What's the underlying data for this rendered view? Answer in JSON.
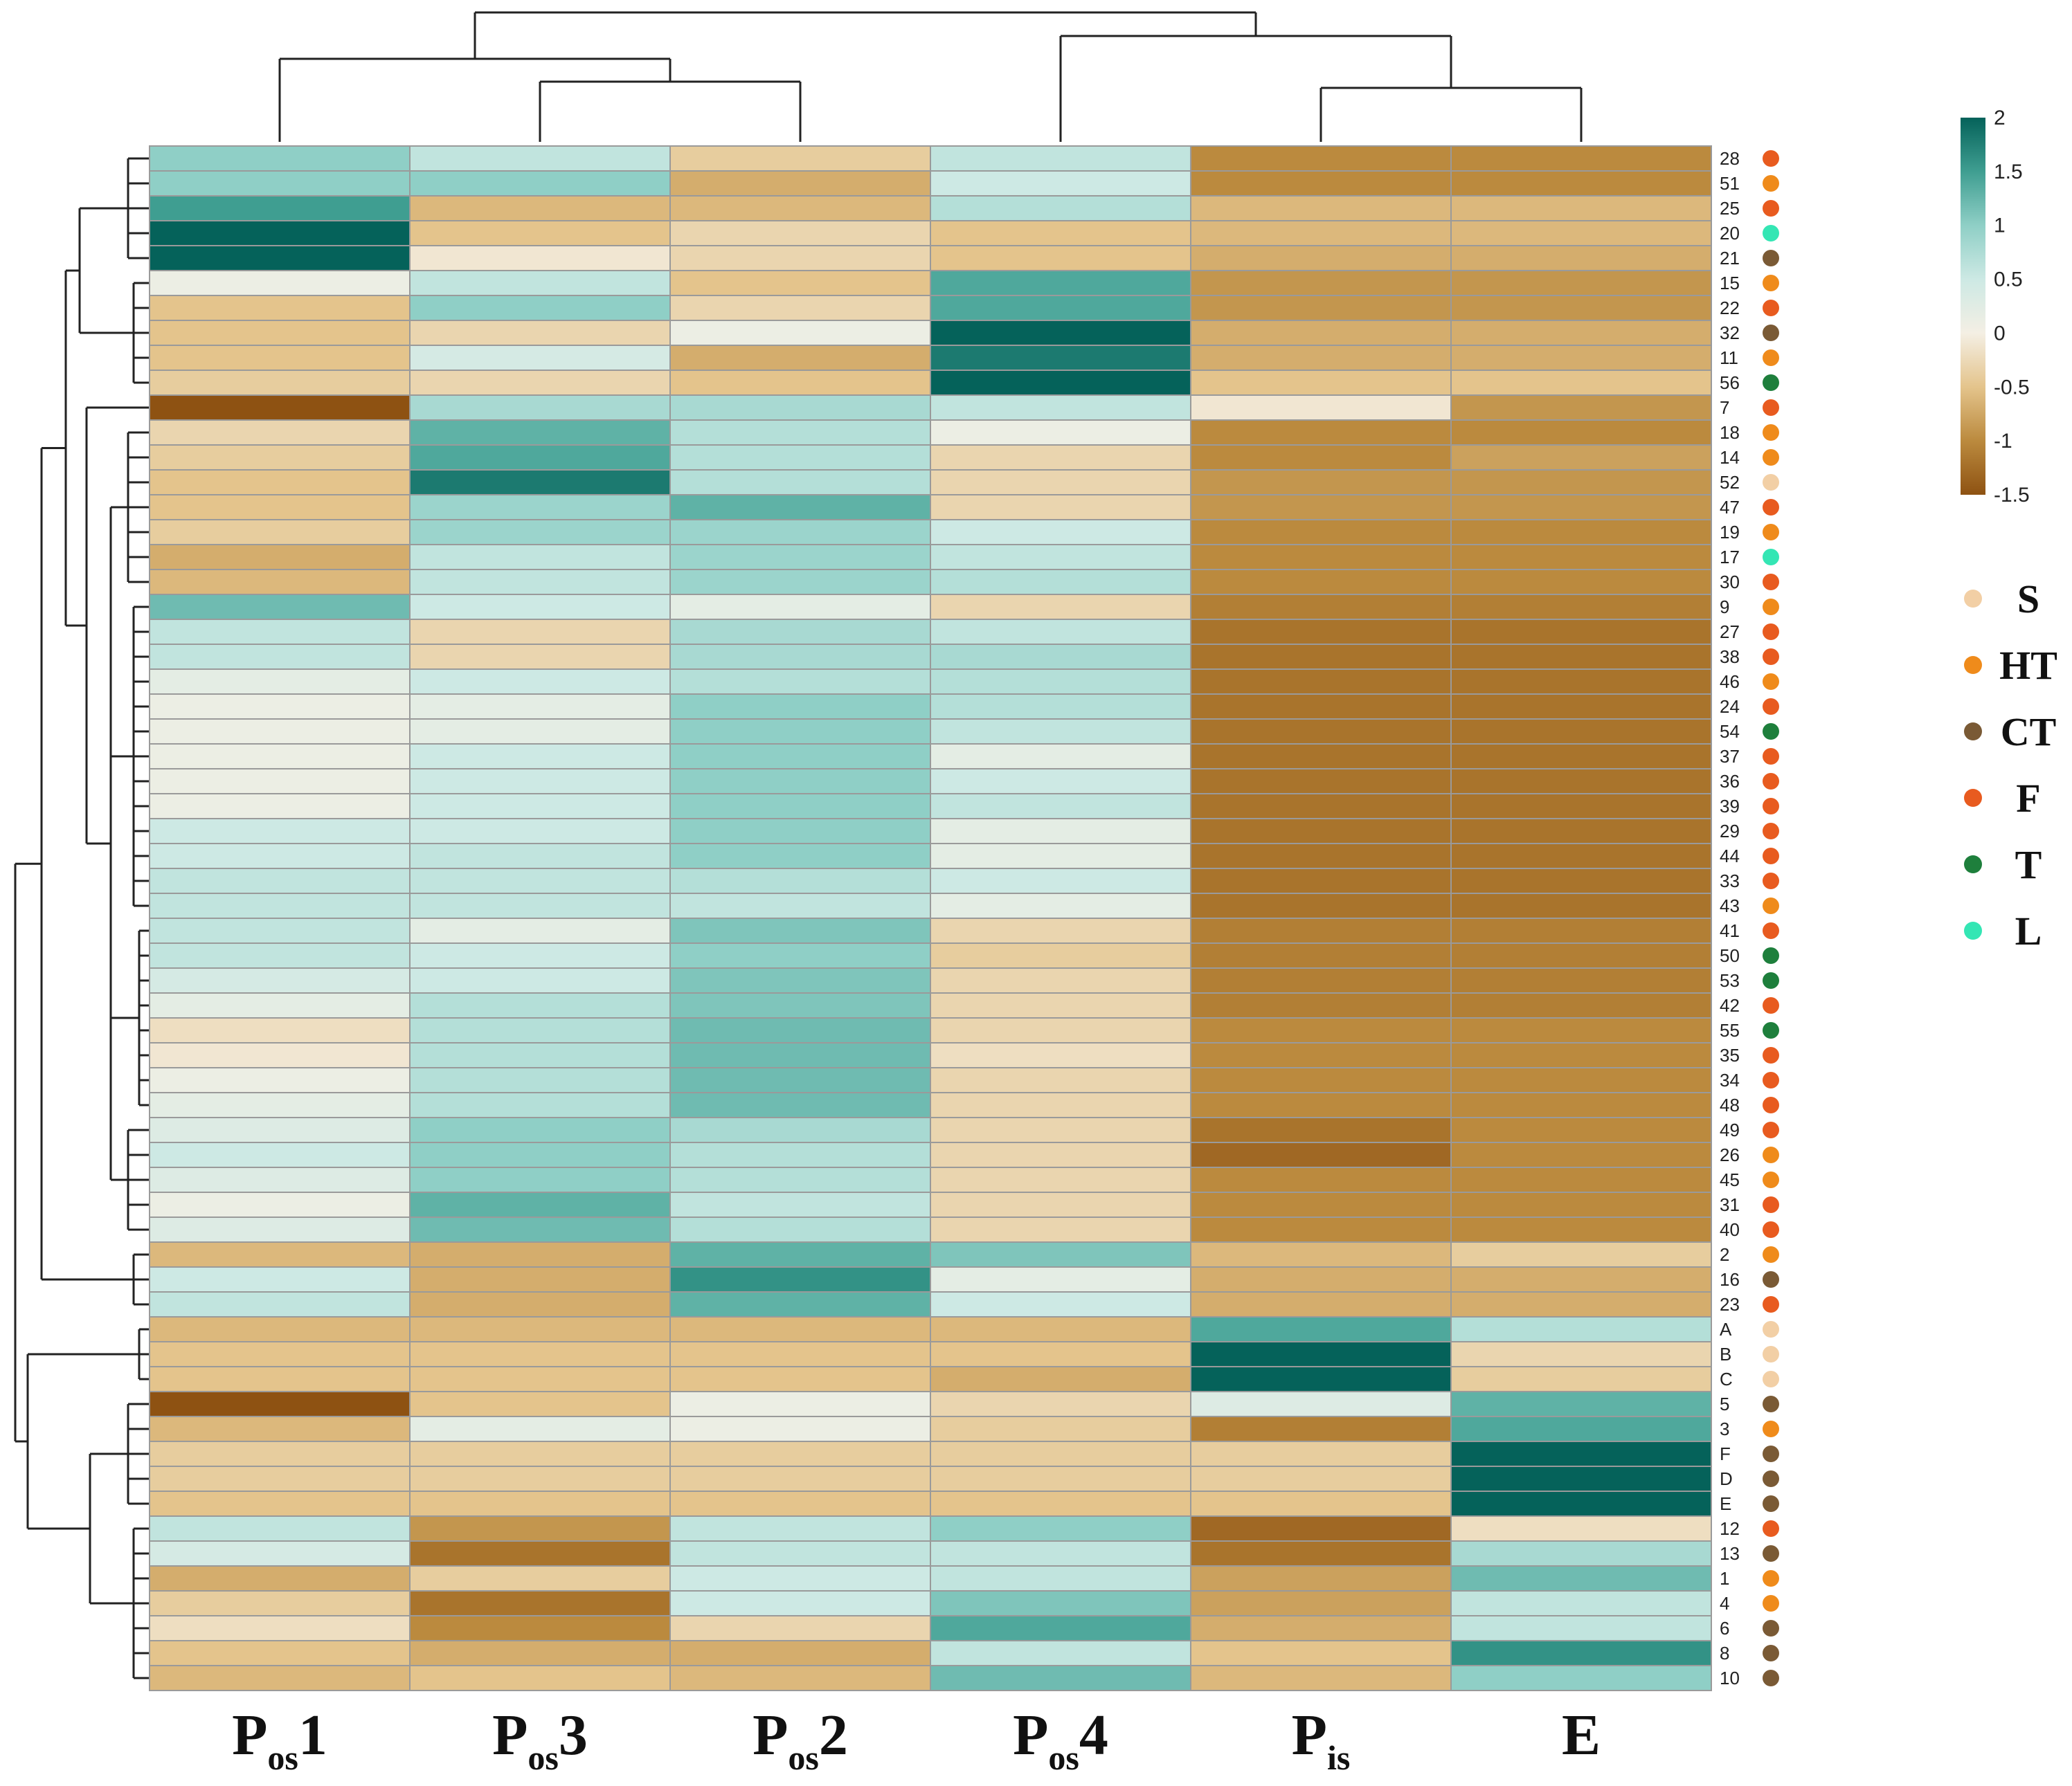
{
  "chart_data": {
    "type": "heatmap",
    "columns": [
      {
        "main": "P",
        "sub": "os",
        "suffix": "1"
      },
      {
        "main": "P",
        "sub": "os",
        "suffix": "3"
      },
      {
        "main": "P",
        "sub": "os",
        "suffix": "2"
      },
      {
        "main": "P",
        "sub": "os",
        "suffix": "4"
      },
      {
        "main": "P",
        "sub": "is",
        "suffix": ""
      },
      {
        "main": "E",
        "sub": "",
        "suffix": ""
      }
    ],
    "rows": [
      {
        "label": "28",
        "group": "F",
        "values": [
          1.0,
          0.6,
          -0.4,
          0.6,
          -1.0,
          -1.0
        ]
      },
      {
        "label": "51",
        "group": "HT",
        "values": [
          1.0,
          1.0,
          -0.7,
          0.5,
          -1.0,
          -1.0
        ]
      },
      {
        "label": "25",
        "group": "F",
        "values": [
          1.5,
          -0.6,
          -0.6,
          0.7,
          -0.6,
          -0.6
        ]
      },
      {
        "label": "20",
        "group": "L",
        "values": [
          2.0,
          -0.5,
          -0.3,
          -0.5,
          -0.6,
          -0.6
        ]
      },
      {
        "label": "21",
        "group": "CT",
        "values": [
          2.0,
          -0.1,
          -0.3,
          -0.5,
          -0.7,
          -0.7
        ]
      },
      {
        "label": "15",
        "group": "HT",
        "values": [
          0.1,
          0.6,
          -0.5,
          1.4,
          -0.9,
          -0.9
        ]
      },
      {
        "label": "22",
        "group": "F",
        "values": [
          -0.5,
          1.0,
          -0.3,
          1.4,
          -0.9,
          -0.9
        ]
      },
      {
        "label": "32",
        "group": "CT",
        "values": [
          -0.5,
          -0.3,
          0.1,
          2.0,
          -0.7,
          -0.7
        ]
      },
      {
        "label": "11",
        "group": "HT",
        "values": [
          -0.5,
          0.4,
          -0.7,
          1.8,
          -0.7,
          -0.7
        ]
      },
      {
        "label": "56",
        "group": "T",
        "values": [
          -0.4,
          -0.3,
          -0.5,
          2.0,
          -0.5,
          -0.5
        ]
      },
      {
        "label": "7",
        "group": "F",
        "values": [
          -1.5,
          0.8,
          0.8,
          0.6,
          -0.1,
          -0.9
        ]
      },
      {
        "label": "18",
        "group": "HT",
        "values": [
          -0.3,
          1.3,
          0.7,
          0.1,
          -1.0,
          -1.0
        ]
      },
      {
        "label": "14",
        "group": "HT",
        "values": [
          -0.4,
          1.4,
          0.7,
          -0.3,
          -1.0,
          -0.8
        ]
      },
      {
        "label": "52",
        "group": "S",
        "values": [
          -0.5,
          1.8,
          0.7,
          -0.3,
          -0.9,
          -0.9
        ]
      },
      {
        "label": "47",
        "group": "F",
        "values": [
          -0.5,
          0.9,
          1.3,
          -0.3,
          -0.9,
          -0.9
        ]
      },
      {
        "label": "19",
        "group": "HT",
        "values": [
          -0.4,
          0.9,
          0.9,
          0.5,
          -1.0,
          -1.0
        ]
      },
      {
        "label": "17",
        "group": "L",
        "values": [
          -0.7,
          0.6,
          0.9,
          0.6,
          -1.0,
          -1.0
        ]
      },
      {
        "label": "30",
        "group": "F",
        "values": [
          -0.6,
          0.6,
          0.9,
          0.7,
          -1.0,
          -1.0
        ]
      },
      {
        "label": "9",
        "group": "HT",
        "values": [
          1.2,
          0.5,
          0.2,
          -0.3,
          -1.1,
          -1.1
        ]
      },
      {
        "label": "27",
        "group": "F",
        "values": [
          0.6,
          -0.3,
          0.8,
          0.6,
          -1.2,
          -1.2
        ]
      },
      {
        "label": "38",
        "group": "F",
        "values": [
          0.6,
          -0.3,
          0.8,
          0.8,
          -1.2,
          -1.2
        ]
      },
      {
        "label": "46",
        "group": "HT",
        "values": [
          0.2,
          0.5,
          0.7,
          0.7,
          -1.2,
          -1.2
        ]
      },
      {
        "label": "24",
        "group": "F",
        "values": [
          0.1,
          0.2,
          1.0,
          0.7,
          -1.2,
          -1.2
        ]
      },
      {
        "label": "54",
        "group": "T",
        "values": [
          0.1,
          0.2,
          1.0,
          0.6,
          -1.2,
          -1.2
        ]
      },
      {
        "label": "37",
        "group": "F",
        "values": [
          0.1,
          0.5,
          1.0,
          0.2,
          -1.2,
          -1.2
        ]
      },
      {
        "label": "36",
        "group": "F",
        "values": [
          0.1,
          0.5,
          1.0,
          0.5,
          -1.2,
          -1.2
        ]
      },
      {
        "label": "39",
        "group": "F",
        "values": [
          0.1,
          0.5,
          1.0,
          0.6,
          -1.2,
          -1.2
        ]
      },
      {
        "label": "29",
        "group": "F",
        "values": [
          0.5,
          0.5,
          1.0,
          0.2,
          -1.2,
          -1.2
        ]
      },
      {
        "label": "44",
        "group": "F",
        "values": [
          0.5,
          0.6,
          1.0,
          0.2,
          -1.2,
          -1.2
        ]
      },
      {
        "label": "33",
        "group": "F",
        "values": [
          0.6,
          0.6,
          0.7,
          0.5,
          -1.2,
          -1.2
        ]
      },
      {
        "label": "43",
        "group": "HT",
        "values": [
          0.6,
          0.6,
          0.6,
          0.2,
          -1.2,
          -1.2
        ]
      },
      {
        "label": "41",
        "group": "F",
        "values": [
          0.6,
          0.2,
          1.1,
          -0.3,
          -1.1,
          -1.1
        ]
      },
      {
        "label": "50",
        "group": "T",
        "values": [
          0.6,
          0.5,
          1.0,
          -0.4,
          -1.1,
          -1.1
        ]
      },
      {
        "label": "53",
        "group": "T",
        "values": [
          0.4,
          0.5,
          1.1,
          -0.3,
          -1.1,
          -1.1
        ]
      },
      {
        "label": "42",
        "group": "F",
        "values": [
          0.2,
          0.7,
          1.1,
          -0.3,
          -1.1,
          -1.1
        ]
      },
      {
        "label": "55",
        "group": "T",
        "values": [
          -0.2,
          0.7,
          1.2,
          -0.3,
          -1.0,
          -1.0
        ]
      },
      {
        "label": "35",
        "group": "F",
        "values": [
          -0.1,
          0.7,
          1.2,
          -0.2,
          -1.0,
          -1.0
        ]
      },
      {
        "label": "34",
        "group": "F",
        "values": [
          0.1,
          0.7,
          1.2,
          -0.3,
          -1.0,
          -1.0
        ]
      },
      {
        "label": "48",
        "group": "F",
        "values": [
          0.2,
          0.7,
          1.2,
          -0.3,
          -1.0,
          -1.0
        ]
      },
      {
        "label": "49",
        "group": "F",
        "values": [
          0.3,
          1.0,
          0.8,
          -0.3,
          -1.2,
          -1.0
        ]
      },
      {
        "label": "26",
        "group": "HT",
        "values": [
          0.5,
          1.0,
          0.7,
          -0.3,
          -1.3,
          -1.0
        ]
      },
      {
        "label": "45",
        "group": "HT",
        "values": [
          0.3,
          1.0,
          0.7,
          -0.3,
          -1.0,
          -1.0
        ]
      },
      {
        "label": "31",
        "group": "F",
        "values": [
          0.1,
          1.3,
          0.6,
          -0.3,
          -1.0,
          -1.0
        ]
      },
      {
        "label": "40",
        "group": "F",
        "values": [
          0.3,
          1.2,
          0.7,
          -0.3,
          -1.0,
          -1.0
        ]
      },
      {
        "label": "2",
        "group": "HT",
        "values": [
          -0.6,
          -0.7,
          1.3,
          1.1,
          -0.6,
          -0.4
        ]
      },
      {
        "label": "16",
        "group": "CT",
        "values": [
          0.5,
          -0.7,
          1.6,
          0.2,
          -0.7,
          -0.7
        ]
      },
      {
        "label": "23",
        "group": "F",
        "values": [
          0.6,
          -0.7,
          1.3,
          0.5,
          -0.7,
          -0.7
        ]
      },
      {
        "label": "A",
        "group": "S",
        "values": [
          -0.6,
          -0.6,
          -0.6,
          -0.6,
          1.4,
          0.7
        ]
      },
      {
        "label": "B",
        "group": "S",
        "values": [
          -0.5,
          -0.5,
          -0.5,
          -0.5,
          2.0,
          -0.3
        ]
      },
      {
        "label": "C",
        "group": "S",
        "values": [
          -0.5,
          -0.5,
          -0.5,
          -0.7,
          2.0,
          -0.4
        ]
      },
      {
        "label": "5",
        "group": "CT",
        "values": [
          -1.5,
          -0.5,
          0.1,
          -0.3,
          0.3,
          1.3
        ]
      },
      {
        "label": "3",
        "group": "HT",
        "values": [
          -0.6,
          0.2,
          0.1,
          -0.4,
          -1.1,
          1.4
        ]
      },
      {
        "label": "F",
        "group": "CT",
        "values": [
          -0.4,
          -0.4,
          -0.4,
          -0.4,
          -0.4,
          2.0
        ]
      },
      {
        "label": "D",
        "group": "CT",
        "values": [
          -0.4,
          -0.4,
          -0.4,
          -0.4,
          -0.4,
          2.0
        ]
      },
      {
        "label": "E",
        "group": "CT",
        "values": [
          -0.5,
          -0.5,
          -0.5,
          -0.5,
          -0.5,
          2.0
        ]
      },
      {
        "label": "12",
        "group": "F",
        "values": [
          0.6,
          -0.9,
          0.6,
          1.0,
          -1.3,
          -0.2
        ]
      },
      {
        "label": "13",
        "group": "CT",
        "values": [
          0.4,
          -1.2,
          0.6,
          0.6,
          -1.2,
          0.8
        ]
      },
      {
        "label": "1",
        "group": "HT",
        "values": [
          -0.7,
          -0.4,
          0.5,
          0.6,
          -0.8,
          1.2
        ]
      },
      {
        "label": "4",
        "group": "HT",
        "values": [
          -0.4,
          -1.2,
          0.5,
          1.1,
          -0.8,
          0.6
        ]
      },
      {
        "label": "6",
        "group": "CT",
        "values": [
          -0.2,
          -1.0,
          -0.3,
          1.4,
          -0.7,
          0.6
        ]
      },
      {
        "label": "8",
        "group": "CT",
        "values": [
          -0.5,
          -0.7,
          -0.7,
          0.6,
          -0.5,
          1.6
        ]
      },
      {
        "label": "10",
        "group": "CT",
        "values": [
          -0.6,
          -0.5,
          -0.6,
          1.2,
          -0.6,
          1.0
        ]
      }
    ],
    "colorbar": {
      "min": -1.5,
      "max": 2,
      "ticks": [
        "2",
        "1.5",
        "1",
        "0.5",
        "0",
        "-0.5",
        "-1",
        "-1.5"
      ]
    },
    "legend": {
      "position": "right",
      "items": [
        {
          "key": "S",
          "label": "S",
          "color": "#f2cfa5"
        },
        {
          "key": "HT",
          "label": "HT",
          "color": "#ef8b1b"
        },
        {
          "key": "CT",
          "label": "CT",
          "color": "#7a5a35"
        },
        {
          "key": "F",
          "label": "F",
          "color": "#e85b1f"
        },
        {
          "key": "T",
          "label": "T",
          "color": "#1e7f3c"
        },
        {
          "key": "L",
          "label": "L",
          "color": "#34e6b4"
        }
      ]
    },
    "color_stops": [
      {
        "v": -1.5,
        "color": "#8e5212"
      },
      {
        "v": -1.0,
        "color": "#bb8a3e"
      },
      {
        "v": -0.5,
        "color": "#e4c48c"
      },
      {
        "v": 0.0,
        "color": "#f4efe4"
      },
      {
        "v": 0.5,
        "color": "#cde9e4"
      },
      {
        "v": 1.0,
        "color": "#8fcfc6"
      },
      {
        "v": 1.5,
        "color": "#3f9e91"
      },
      {
        "v": 2.0,
        "color": "#05625a"
      }
    ],
    "dendrogram_top": "clusters: ((Pos1,(Pos3,Pos2)),(Pos4,(Pis,E)))",
    "dendrogram_left": "hierarchical clustering of rows"
  }
}
